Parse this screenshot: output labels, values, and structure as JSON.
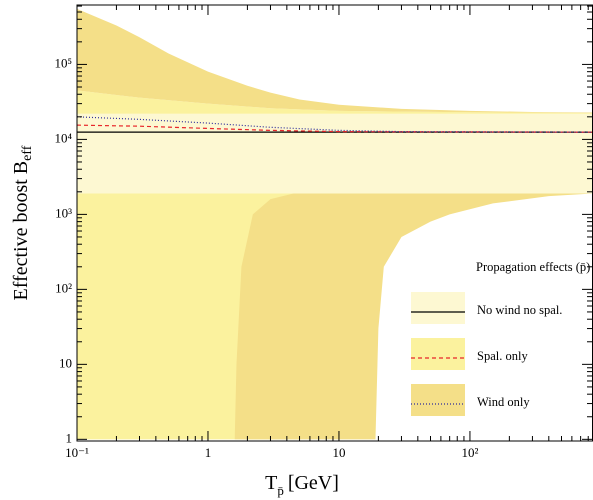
{
  "chart_data": {
    "type": "area",
    "xlabel": {
      "main": "T",
      "sub": "p̄",
      "unit": "[GeV]"
    },
    "ylabel": {
      "main": "Effective boost B",
      "sub": "eff"
    },
    "legend_title": "Propagation effects (p̄)",
    "legend_position": "lower right",
    "log_x": true,
    "log_y": true,
    "xlim": [
      0.1,
      870
    ],
    "ylim": [
      0.95,
      620000
    ],
    "xticks": [
      {
        "value": 0.1,
        "label": "10⁻¹"
      },
      1,
      10,
      {
        "value": 100,
        "label": "10²"
      }
    ],
    "yticks": [
      1,
      10,
      {
        "value": 100,
        "label": "10²"
      },
      {
        "value": 1000,
        "label": "10³"
      },
      {
        "value": 10000,
        "label": "10⁴"
      },
      {
        "value": 100000,
        "label": "10⁵"
      }
    ],
    "xminorticks": [
      0.2,
      0.3,
      0.4,
      0.5,
      0.6,
      0.7,
      0.8,
      0.9,
      2,
      3,
      4,
      5,
      6,
      7,
      8,
      9,
      20,
      30,
      40,
      50,
      60,
      70,
      80,
      90,
      200,
      300,
      400,
      500,
      600,
      700,
      800
    ],
    "yminorticks": [
      2,
      3,
      4,
      5,
      6,
      7,
      8,
      9,
      20,
      30,
      40,
      50,
      60,
      70,
      80,
      90,
      200,
      300,
      400,
      500,
      600,
      700,
      800,
      900,
      2000,
      3000,
      4000,
      5000,
      6000,
      7000,
      8000,
      9000,
      20000,
      30000,
      40000,
      50000,
      60000,
      70000,
      80000,
      90000,
      200000,
      300000,
      400000,
      500000,
      600000
    ],
    "series": [
      {
        "name": "No wind no spal.",
        "color": "#000000",
        "dash": "none",
        "fill": "#fdf8d2",
        "x": [
          0.1,
          870
        ],
        "values": [
          12500,
          12500
        ],
        "bands": [
          {
            "x": [
              0.1,
              870,
              870,
              0.1
            ],
            "y": [
              1900,
              1900,
              22000,
              22000
            ]
          }
        ]
      },
      {
        "name": "Spal. only",
        "color": "#e8262a",
        "dash": "4,3",
        "fill": "#fbf29e",
        "x": [
          0.1,
          0.3,
          1,
          3,
          10,
          870
        ],
        "values": [
          15500,
          15000,
          14000,
          13200,
          12700,
          12500
        ],
        "bands": [
          {
            "x": [
              0.1,
              0.3,
              1,
              3,
              10,
              100,
              870,
              870,
              0.1
            ],
            "y": [
              45000,
              36000,
              30000,
              26000,
              24000,
              23000,
              22500,
              22000,
              22000
            ]
          },
          {
            "x": [
              0.1,
              5,
              5,
              0.1
            ],
            "y": [
              1,
              1,
              1900,
              1900
            ]
          }
        ]
      },
      {
        "name": "Wind only",
        "color": "#2b2b9a",
        "dash": "1,2",
        "fill": "#f4df88",
        "x": [
          0.1,
          0.3,
          1,
          3,
          10,
          30,
          870
        ],
        "values": [
          20000,
          18500,
          16500,
          14500,
          13200,
          12700,
          12500
        ],
        "bands": [
          {
            "x": [
              0.1,
              0.2,
              0.3,
              0.5,
              1,
              2,
              3,
              5,
              10,
              30,
              100,
              300,
              870,
              870,
              100,
              10,
              3,
              1,
              0.3,
              0.1
            ],
            "y": [
              550000,
              330000,
              230000,
              140000,
              80000,
              52000,
              42000,
              34000,
              29000,
              25500,
              24000,
              23200,
              22800,
              22500,
              23000,
              24000,
              26000,
              30000,
              36000,
              45000
            ]
          },
          {
            "x": [
              1.6,
              19,
              20,
              22,
              30,
              50,
              70,
              150,
              400,
              870,
              4.5,
              3,
              2.2,
              1.8,
              1.65
            ],
            "y": [
              1,
              1,
              30,
              200,
              500,
              800,
              1000,
              1400,
              1750,
              1900,
              1900,
              1600,
              1000,
              200,
              10
            ]
          }
        ]
      }
    ]
  }
}
